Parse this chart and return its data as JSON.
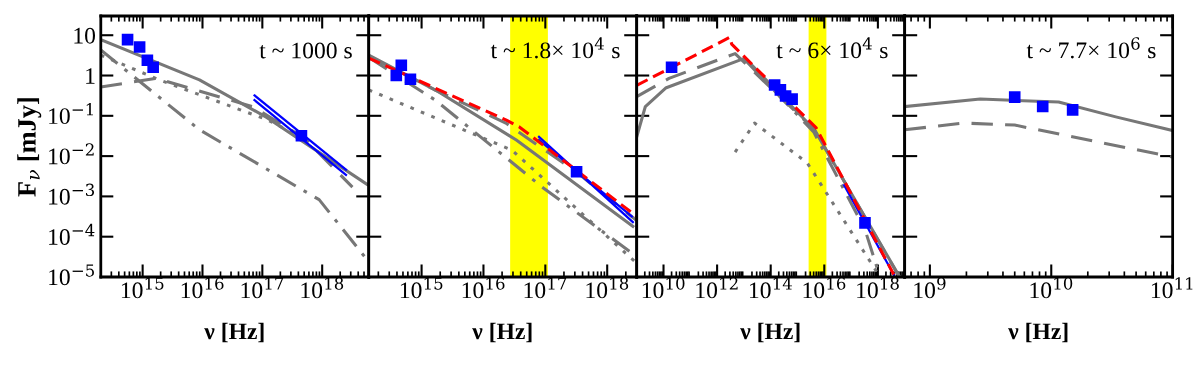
{
  "chart_data": [
    {
      "type": "line",
      "annotations": [
        "t ~ 1000 s"
      ],
      "xlabel": "ν [Hz]",
      "ylabel": "F$_{ν}$ [mJy]",
      "log": "xy",
      "xlim": [
        200000000000000.0,
        6e+18
      ],
      "xticks": [
        {
          "value": 1000000000000000.0,
          "label": "10$^{15}$"
        },
        {
          "value": 1e+16,
          "label": "10$^{16}$"
        },
        {
          "value": 1e+17,
          "label": "10$^{17}$"
        },
        {
          "value": 1e+18,
          "label": "10$^{18}$"
        }
      ],
      "ylim": [
        1e-05,
        30
      ],
      "yticks": [
        {
          "value": 1e-05,
          "label": "10$^{−5}$"
        },
        {
          "value": 0.0001,
          "label": "10$^{−4}$"
        },
        {
          "value": 0.001,
          "label": "10$^{−3}$"
        },
        {
          "value": 0.01,
          "label": "10$^{−2}$"
        },
        {
          "value": 0.1,
          "label": "10$^{−1}$"
        },
        1,
        10
      ],
      "series": [
        {
          "type": "line",
          "line_style": "dashdot",
          "color": "#777777",
          "x": [
            200000000000000.0,
            8900000000000000.0,
            8.9e+17,
            5.6e+18
          ],
          "values": [
            4.3,
            0.045,
            0.00083,
            2.7e-05
          ]
        },
        {
          "type": "line",
          "line_style": "dotted",
          "color": "#777777",
          "x": [
            200000000000000.0,
            1900000000000000.0,
            1.2e+17,
            4.5e+17
          ],
          "values": [
            3.2,
            0.78,
            0.08,
            0.03
          ]
        },
        {
          "type": "line",
          "line_style": "dashed",
          "color": "#777777",
          "x": [
            200000000000000.0,
            1700000000000000.0,
            6.8e+16,
            5e+17,
            3.2e+18
          ],
          "values": [
            0.52,
            0.85,
            0.17,
            0.028,
            0.0017
          ]
        },
        {
          "type": "line",
          "line_style": "solid",
          "color": "#777777",
          "x": [
            200000000000000.0,
            8900000000000000.0,
            1.2e+17,
            5.6e+18
          ],
          "values": [
            7.8,
            0.78,
            0.09,
            0.002
          ]
        },
        {
          "type": "line",
          "line_style": "solid",
          "color": "#0000ff",
          "x": [
            7.4e+16,
            2.5e+18
          ],
          "values": [
            0.32,
            0.0046
          ]
        },
        {
          "type": "line",
          "line_style": "solid",
          "color": "#0000ff",
          "x": [
            7.4e+16,
            2.5e+18
          ],
          "values": [
            0.245,
            0.0034
          ]
        },
        {
          "type": "scatter",
          "marker": "square",
          "color": "#0000ff",
          "x": [
            560000000000000.0,
            890000000000000.0,
            1200000000000000.0,
            1500000000000000.0,
            4.5e+17
          ],
          "values": [
            7.8,
            5.1,
            2.4,
            1.6,
            0.032
          ]
        }
      ]
    },
    {
      "type": "line",
      "annotations": [
        "t ~ 1.8× 10$^{4}$ s"
      ],
      "xlabel": "ν [Hz]",
      "log": "xy",
      "tick_labels": "x",
      "xlim": [
        140000000000000.0,
        3e+18
      ],
      "xticks": [
        {
          "value": 1000000000000000.0,
          "label": "10$^{15}$"
        },
        {
          "value": 1e+16,
          "label": "10$^{16}$"
        },
        {
          "value": 1e+17,
          "label": "10$^{17}$"
        },
        {
          "value": 1e+18,
          "label": "10$^{18}$"
        }
      ],
      "ylim": [
        1e-05,
        30
      ],
      "yticks": [
        {
          "value": 1e-05,
          "label": null
        },
        {
          "value": 0.0001,
          "label": null
        },
        {
          "value": 0.001,
          "label": null
        },
        {
          "value": 0.01,
          "label": null
        },
        {
          "value": 0.1,
          "label": null
        },
        {
          "value": 1,
          "label": null
        },
        {
          "value": 10,
          "label": null
        }
      ],
      "bands": [
        {
          "axis": "x",
          "from": 2.7e+16,
          "to": 1.1e+17,
          "color": "#ffff00"
        }
      ],
      "series": [
        {
          "type": "line",
          "line_style": "dashdot",
          "color": "#777777",
          "x": [
            140000000000000.0,
            1700000000000000.0,
            8.9e+16,
            3e+18
          ],
          "values": [
            2.8,
            0.24,
            0.0017,
            3.2e-05
          ]
        },
        {
          "type": "line",
          "line_style": "dotted",
          "color": "#777777",
          "x": [
            140000000000000.0,
            2.9e+16,
            3e+18
          ],
          "values": [
            0.44,
            0.014,
            2.2e-05
          ]
        },
        {
          "type": "line",
          "line_style": "dashed",
          "color": "#777777",
          "x": [
            140000000000000.0,
            1600000000000000.0,
            2.3e+16,
            3.2e+17,
            3e+18
          ],
          "values": [
            3.0,
            0.45,
            0.066,
            0.004,
            0.00025
          ]
        },
        {
          "type": "line",
          "line_style": "solid",
          "color": "#777777",
          "x": [
            140000000000000.0,
            1700000000000000.0,
            3.4e+16,
            2.6e+18
          ],
          "values": [
            3.2,
            0.43,
            0.025,
            0.00018
          ]
        },
        {
          "type": "line",
          "line_style": "solid",
          "color": "#0000ff",
          "x": [
            7.9e+16,
            2.6e+18
          ],
          "values": [
            0.03,
            0.00023
          ]
        },
        {
          "type": "line",
          "line_style": "solid",
          "color": "#0000ff",
          "x": [
            7.9e+16,
            2.5e+18
          ],
          "values": [
            0.025,
            0.00032
          ]
        },
        {
          "type": "line",
          "line_style": "dashed",
          "color": "#ff0000",
          "x": [
            140000000000000.0,
            2.3e+16,
            3.8e+16,
            3e+18
          ],
          "values": [
            2.7,
            0.079,
            0.053,
            0.00032
          ]
        },
        {
          "type": "scatter",
          "marker": "square",
          "color": "#0000ff",
          "x": [
            470000000000000.0,
            390000000000000.0,
            660000000000000.0,
            3.2e+17
          ],
          "values": [
            1.8,
            1.0,
            0.81,
            0.0041
          ]
        }
      ]
    },
    {
      "type": "line",
      "annotations": [
        "t ~ 6× 10$^{4}$ s"
      ],
      "xlabel": "ν [Hz]",
      "log": "xy",
      "tick_labels": "x",
      "xlim": [
        1000000000.0,
        1e+19
      ],
      "xticks": [
        {
          "value": 10000000000.0,
          "label": "10$^{10}$"
        },
        {
          "value": 1000000000000.0,
          "label": "10$^{12}$"
        },
        {
          "value": 100000000000000.0,
          "label": "10$^{14}$"
        },
        {
          "value": 1e+16,
          "label": "10$^{16}$"
        },
        {
          "value": 1e+18,
          "label": "10$^{18}$"
        }
      ],
      "ylim": [
        1e-05,
        30
      ],
      "yticks": [
        {
          "value": 1e-05,
          "label": null
        },
        {
          "value": 0.0001,
          "label": null
        },
        {
          "value": 0.001,
          "label": null
        },
        {
          "value": 0.01,
          "label": null
        },
        {
          "value": 0.1,
          "label": null
        },
        {
          "value": 1,
          "label": null
        },
        {
          "value": 10,
          "label": null
        }
      ],
      "bands": [
        {
          "axis": "x",
          "from": 2600000000000000.0,
          "to": 1.2e+16,
          "color": "#ffff00"
        }
      ],
      "series": [
        {
          "type": "line",
          "line_style": "dashdot",
          "color": "#777777",
          "x": [
            10000000000000.0,
            4000000000000000.0,
            3.3e+17,
            1.2e+18
          ],
          "values": [
            2.6,
            0.04,
            0.00015,
            1e-05
          ]
        },
        {
          "type": "line",
          "line_style": "dotted",
          "color": "#777777",
          "x": [
            4700000000000.0,
            25000000000000.0,
            2300000000000000.0,
            1.2e+18
          ],
          "values": [
            0.0126,
            0.066,
            0.0068,
            1e-05
          ]
        },
        {
          "type": "line",
          "line_style": "dashed",
          "color": "#777777",
          "x": [
            1000000000.0,
            16000000000.0,
            4700000000000.0,
            4300000000000000.0,
            6.3e+18
          ],
          "values": [
            0.3,
            0.85,
            3.5,
            0.045,
            1e-05
          ]
        },
        {
          "type": "line",
          "line_style": "solid",
          "color": "#777777",
          "x": [
            1000000000.0,
            2100000000.0,
            12000000000.0,
            11000000000000.0,
            4300000000000000.0,
            6.5e+18
          ],
          "values": [
            0.03,
            0.17,
            0.49,
            2.7,
            0.045,
            1e-05
          ]
        },
        {
          "type": "line",
          "line_style": "solid",
          "color": "#0000ff",
          "x": [
            5.5e+16,
            3.9e+18
          ],
          "values": [
            0.0019,
            1.15e-05
          ]
        },
        {
          "line_style": "dashed",
          "color": "#ff0000",
          "x": [
            1000000000.0,
            3000000000000.0,
            3500000000000.0,
            5000000000000000.0,
            3.9e+18
          ],
          "values": [
            0.57,
            8.9,
            6.0,
            0.05,
            1.15e-05
          ]
        },
        {
          "type": "scatter",
          "marker": "square",
          "color": "#0000ff",
          "x": [
            20000000000.0,
            140000000000000.0,
            230000000000000.0,
            360000000000000.0,
            630000000000000.0,
            3.3e+17
          ],
          "values": [
            1.6,
            0.58,
            0.44,
            0.31,
            0.26,
            0.00022
          ]
        }
      ]
    },
    {
      "type": "line",
      "annotations": [
        "t ~ 7.7× 10$^{6}$ s"
      ],
      "xlabel": "ν [Hz]",
      "log": "xy",
      "tick_labels": "x",
      "xlim": [
        620000000.0,
        100000000000.0
      ],
      "xticks": [
        {
          "value": 1000000000.0,
          "label": "10$^{9}$"
        },
        {
          "value": 10000000000.0,
          "label": "10$^{10}$"
        },
        {
          "value": 100000000000.0,
          "label": "10$^{11}$"
        }
      ],
      "ylim": [
        1e-05,
        30
      ],
      "yticks": [
        {
          "value": 1e-05,
          "label": null
        },
        {
          "value": 0.0001,
          "label": null
        },
        {
          "value": 0.001,
          "label": null
        },
        {
          "value": 0.01,
          "label": null
        },
        {
          "value": 0.1,
          "label": null
        },
        {
          "value": 1,
          "label": null
        },
        {
          "value": 10,
          "label": null
        }
      ],
      "series": [
        {
          "type": "line",
          "line_style": "dashed",
          "color": "#777777",
          "x": [
            620000000.0,
            1900000000.0,
            5000000000.0,
            25000000000.0,
            100000000000.0
          ],
          "values": [
            0.045,
            0.066,
            0.059,
            0.022,
            0.0095
          ]
        },
        {
          "type": "line",
          "line_style": "solid",
          "color": "#777777",
          "x": [
            620000000.0,
            2600000000.0,
            11500000000.0,
            34000000000.0,
            100000000000.0
          ],
          "values": [
            0.17,
            0.26,
            0.22,
            0.094,
            0.043
          ]
        },
        {
          "type": "scatter",
          "marker": "square",
          "color": "#0000ff",
          "x": [
            5000000000.0,
            8500000000.0,
            15000000000.0
          ],
          "values": [
            0.29,
            0.17,
            0.14
          ]
        }
      ]
    }
  ]
}
